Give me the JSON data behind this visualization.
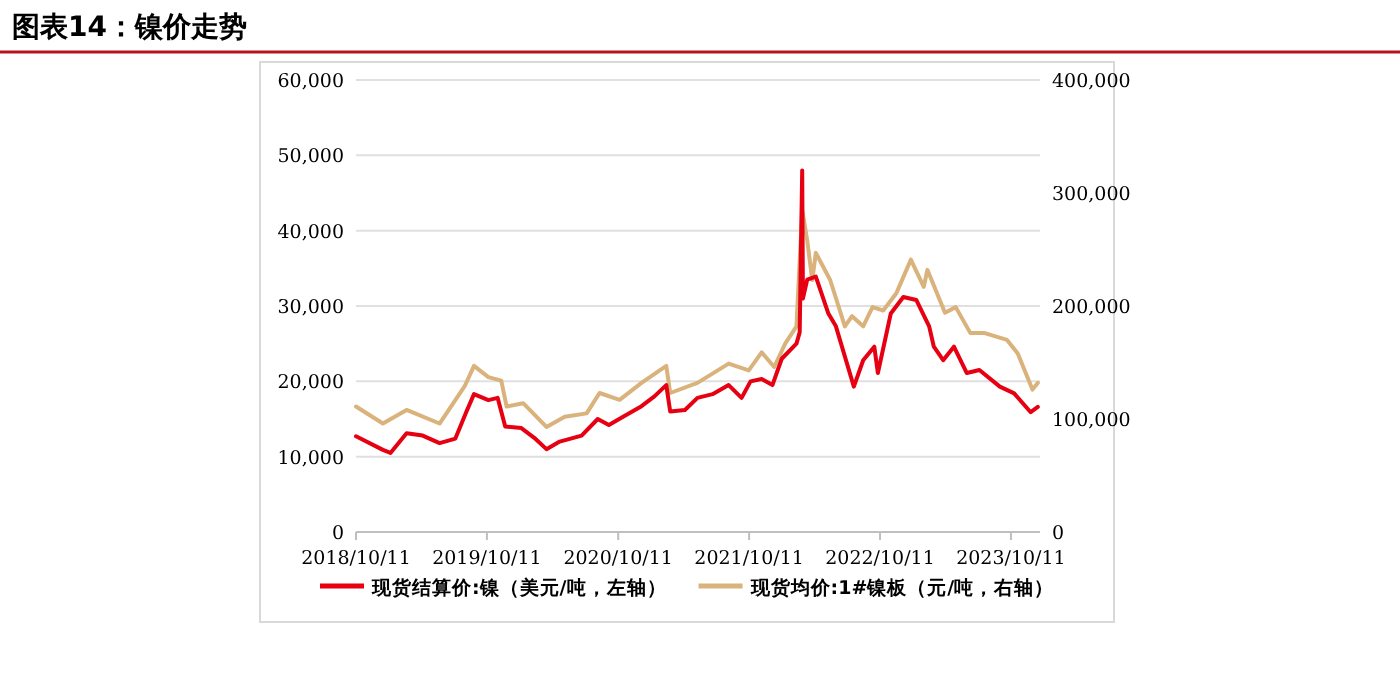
{
  "chart_data": {
    "type": "line",
    "title": "图表14：镍价走势",
    "xlim": [
      "2018-10-11",
      "2023-12-31"
    ],
    "xticks": [
      {
        "value": "2018-10-11",
        "label": "2018/10/11"
      },
      {
        "value": "2019-10-11",
        "label": "2019/10/11"
      },
      {
        "value": "2020-10-11",
        "label": "2020/10/11"
      },
      {
        "value": "2021-10-11",
        "label": "2021/10/11"
      },
      {
        "value": "2022-10-11",
        "label": "2022/10/11"
      },
      {
        "value": "2023-10-11",
        "label": "2023/10/11"
      }
    ],
    "ylim": [
      0,
      60000
    ],
    "yticks": [
      {
        "value": 0,
        "label": "0"
      },
      {
        "value": 10000,
        "label": "10,000"
      },
      {
        "value": 20000,
        "label": "20,000"
      },
      {
        "value": 30000,
        "label": "30,000"
      },
      {
        "value": 40000,
        "label": "40,000"
      },
      {
        "value": 50000,
        "label": "50,000"
      },
      {
        "value": 60000,
        "label": "60,000"
      }
    ],
    "y2lim": [
      0,
      400000
    ],
    "y2ticks": [
      {
        "value": 0,
        "label": "0"
      },
      {
        "value": 100000,
        "label": "100,000"
      },
      {
        "value": 200000,
        "label": "200,000"
      },
      {
        "value": 300000,
        "label": "300,000"
      },
      {
        "value": 400000,
        "label": "400,000"
      }
    ],
    "grid": "y",
    "legend": "bottom",
    "series": [
      {
        "name": "现货结算价:镍（美元/吨，左轴）",
        "color": "#e60012",
        "x": [
          "2018-10-11",
          "2018-12-25",
          "2019-01-15",
          "2019-03-01",
          "2019-04-15",
          "2019-06-01",
          "2019-07-15",
          "2019-08-15",
          "2019-09-05",
          "2019-10-15",
          "2019-11-10",
          "2019-12-01",
          "2020-01-15",
          "2020-02-20",
          "2020-03-25",
          "2020-05-01",
          "2020-07-01",
          "2020-08-15",
          "2020-09-15",
          "2020-11-01",
          "2020-12-15",
          "2021-01-20",
          "2021-02-22",
          "2021-03-05",
          "2021-04-15",
          "2021-05-20",
          "2021-07-01",
          "2021-08-15",
          "2021-09-20",
          "2021-10-15",
          "2021-11-15",
          "2021-12-15",
          "2022-01-10",
          "2022-02-20",
          "2022-03-01",
          "2022-03-08",
          "2022-03-10",
          "2022-03-22",
          "2022-04-15",
          "2022-05-20",
          "2022-06-10",
          "2022-07-30",
          "2022-08-25",
          "2022-09-25",
          "2022-10-05",
          "2022-11-10",
          "2022-12-15",
          "2023-01-20",
          "2023-02-25",
          "2023-03-10",
          "2023-04-05",
          "2023-05-05",
          "2023-06-10",
          "2023-07-15",
          "2023-09-10",
          "2023-10-20",
          "2023-12-05",
          "2023-12-25"
        ],
        "values": [
          12700,
          10900,
          10500,
          13100,
          12800,
          11800,
          12400,
          16000,
          18300,
          17500,
          17800,
          14000,
          13800,
          12500,
          11000,
          12000,
          12800,
          15000,
          14200,
          15500,
          16700,
          18000,
          19500,
          16000,
          16200,
          17800,
          18300,
          19500,
          17800,
          20000,
          20300,
          19500,
          23000,
          25000,
          26500,
          48000,
          31000,
          33500,
          33900,
          29000,
          27300,
          19300,
          22800,
          24600,
          21100,
          29000,
          31200,
          30800,
          27300,
          24600,
          22800,
          24600,
          21100,
          21500,
          19300,
          18400,
          15900,
          16600
        ]
      },
      {
        "name": "现货均价:1#镍板（元/吨，右轴）",
        "color": "#d9b27c",
        "axis": "y2",
        "x": [
          "2018-10-11",
          "2018-12-25",
          "2019-03-01",
          "2019-06-01",
          "2019-08-10",
          "2019-09-05",
          "2019-10-15",
          "2019-11-20",
          "2019-12-05",
          "2020-01-20",
          "2020-03-25",
          "2020-05-15",
          "2020-07-15",
          "2020-08-20",
          "2020-10-15",
          "2020-12-15",
          "2021-02-22",
          "2021-03-05",
          "2021-05-20",
          "2021-08-15",
          "2021-10-10",
          "2021-11-15",
          "2021-12-20",
          "2022-01-20",
          "2022-02-20",
          "2022-03-08",
          "2022-03-22",
          "2022-04-05",
          "2022-04-15",
          "2022-05-25",
          "2022-07-05",
          "2022-07-25",
          "2022-08-25",
          "2022-09-20",
          "2022-10-20",
          "2022-11-25",
          "2023-01-05",
          "2023-02-10",
          "2023-02-20",
          "2023-04-10",
          "2023-05-10",
          "2023-06-20",
          "2023-07-30",
          "2023-09-30",
          "2023-10-30",
          "2023-12-10",
          "2023-12-25"
        ],
        "values": [
          111000,
          96000,
          108000,
          96000,
          129000,
          147000,
          137000,
          134000,
          111000,
          114000,
          93000,
          102000,
          105000,
          123000,
          117000,
          132000,
          147000,
          123000,
          132000,
          149000,
          143000,
          159000,
          146000,
          167000,
          182000,
          285000,
          258000,
          223000,
          247000,
          223000,
          182000,
          191000,
          182000,
          199000,
          196000,
          211000,
          241000,
          217000,
          232000,
          194000,
          199000,
          176000,
          176000,
          170000,
          158000,
          126000,
          132000
        ]
      }
    ]
  }
}
